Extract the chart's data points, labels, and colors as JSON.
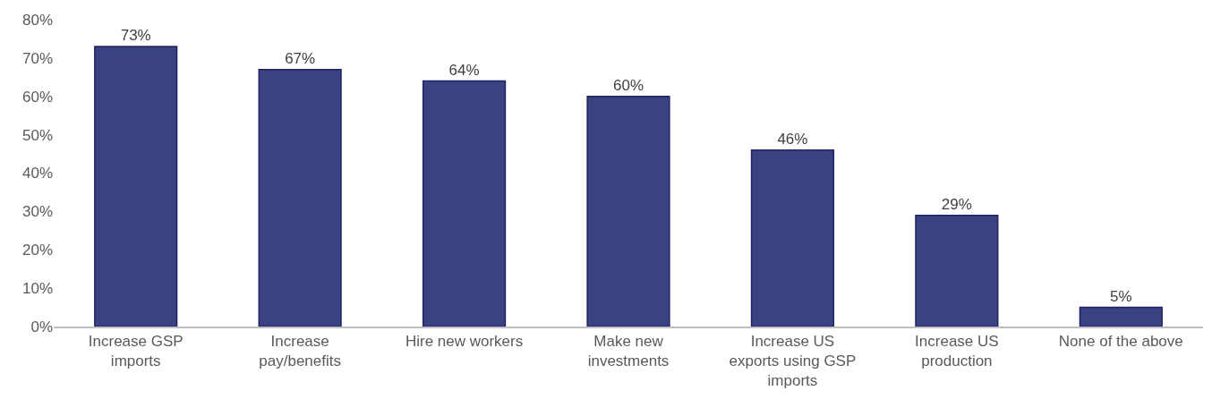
{
  "chart_data": {
    "type": "bar",
    "categories": [
      "Increase GSP imports",
      "Increase pay/benefits",
      "Hire new workers",
      "Make new investments",
      "Increase US exports using GSP imports",
      "Increase US production",
      "None of the above"
    ],
    "values": [
      73,
      67,
      64,
      60,
      46,
      29,
      5
    ],
    "value_labels": [
      "73%",
      "67%",
      "64%",
      "60%",
      "46%",
      "29%",
      "5%"
    ],
    "color": "#3b4282",
    "ylim": [
      0,
      80
    ],
    "yticks": [
      {
        "value": 0,
        "label": "0%"
      },
      {
        "value": 10,
        "label": "10%"
      },
      {
        "value": 20,
        "label": "20%"
      },
      {
        "value": 30,
        "label": "30%"
      },
      {
        "value": 40,
        "label": "40%"
      },
      {
        "value": 50,
        "label": "50%"
      },
      {
        "value": 60,
        "label": "60%"
      },
      {
        "value": 70,
        "label": "70%"
      },
      {
        "value": 80,
        "label": "80%"
      }
    ],
    "grid": false
  }
}
